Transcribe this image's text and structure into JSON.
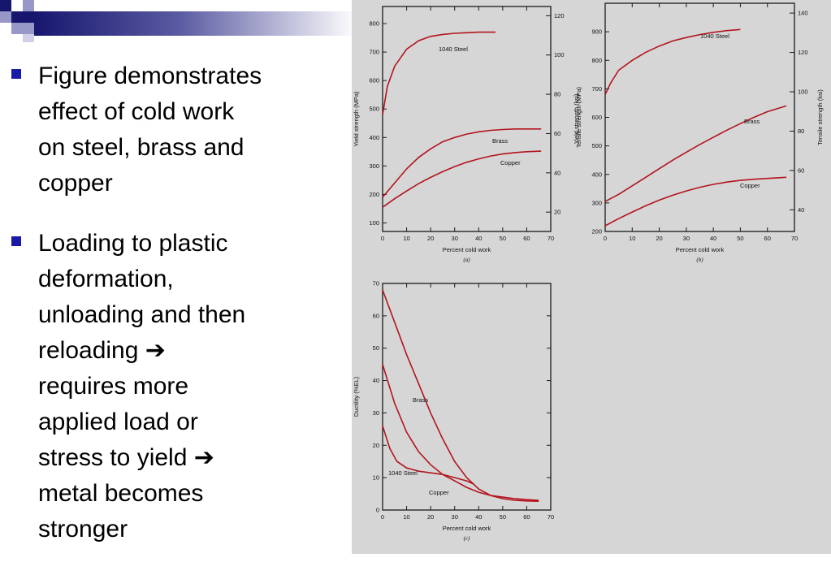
{
  "colors": {
    "bullet": "#1a1aa8",
    "curve": "#b3141e",
    "figure_bg": "#d6d6d6",
    "deco_dark": "#16166e",
    "deco_light": "#9898c8"
  },
  "bullets": [
    {
      "text": "Figure demonstrates\neffect of cold work\non steel, brass and\ncopper"
    },
    {
      "text": "Loading to plastic\ndeformation,\nunloading and then\nreloading ➔\nrequires more\napplied load or\nstress to yield ➔\nmetal becomes\nstronger"
    }
  ],
  "chart_data": [
    {
      "type": "line",
      "sublabel": "(a)",
      "xlabel": "Percent cold work",
      "ylabel": "Yield strength (MPa)",
      "y2label": "Yield strength (ksi)",
      "xlim": [
        0,
        70
      ],
      "ylim": [
        70,
        860
      ],
      "y2lim": [
        10.15,
        124.7
      ],
      "xticks": [
        0,
        10,
        20,
        30,
        40,
        50,
        60,
        70
      ],
      "yticks": [
        100,
        200,
        300,
        400,
        500,
        600,
        700,
        800
      ],
      "y2ticks": [
        20,
        40,
        60,
        80,
        100,
        120
      ],
      "series": [
        {
          "name": "1040 Steel",
          "x": [
            0,
            2,
            5,
            10,
            15,
            20,
            25,
            30,
            35,
            40,
            47
          ],
          "y": [
            480,
            580,
            650,
            710,
            740,
            755,
            762,
            766,
            768,
            770,
            770
          ]
        },
        {
          "name": "Brass",
          "x": [
            0,
            5,
            10,
            15,
            20,
            25,
            30,
            35,
            40,
            45,
            50,
            55,
            60,
            66
          ],
          "y": [
            190,
            240,
            290,
            330,
            360,
            385,
            400,
            412,
            420,
            425,
            428,
            430,
            430,
            430
          ]
        },
        {
          "name": "Copper",
          "x": [
            0,
            5,
            10,
            15,
            20,
            25,
            30,
            35,
            40,
            45,
            50,
            55,
            60,
            66
          ],
          "y": [
            155,
            185,
            212,
            238,
            260,
            280,
            298,
            313,
            325,
            335,
            342,
            347,
            350,
            352
          ]
        }
      ]
    },
    {
      "type": "line",
      "sublabel": "(b)",
      "xlabel": "Percent cold work",
      "ylabel": "Tensile strength (MPa)",
      "y2label": "Tensile strength (ksi)",
      "xlim": [
        0,
        70
      ],
      "ylim": [
        200,
        1000
      ],
      "y2lim": [
        29,
        145
      ],
      "xticks": [
        0,
        10,
        20,
        30,
        40,
        50,
        60,
        70
      ],
      "yticks": [
        200,
        300,
        400,
        500,
        600,
        700,
        800,
        900
      ],
      "y2ticks": [
        40,
        60,
        80,
        100,
        120,
        140
      ],
      "series": [
        {
          "name": "1040 Steel",
          "x": [
            0,
            2,
            5,
            10,
            15,
            20,
            25,
            30,
            35,
            40,
            45,
            50
          ],
          "y": [
            680,
            720,
            765,
            800,
            828,
            850,
            868,
            880,
            890,
            898,
            904,
            908
          ]
        },
        {
          "name": "Brass",
          "x": [
            0,
            5,
            10,
            15,
            20,
            25,
            30,
            35,
            40,
            45,
            50,
            55,
            60,
            67
          ],
          "y": [
            305,
            330,
            360,
            390,
            420,
            450,
            478,
            505,
            530,
            555,
            578,
            600,
            620,
            640
          ]
        },
        {
          "name": "Copper",
          "x": [
            0,
            5,
            10,
            15,
            20,
            25,
            30,
            35,
            40,
            45,
            50,
            55,
            60,
            67
          ],
          "y": [
            220,
            245,
            268,
            290,
            310,
            327,
            342,
            355,
            365,
            373,
            379,
            383,
            386,
            390
          ]
        }
      ]
    },
    {
      "type": "line",
      "sublabel": "(c)",
      "xlabel": "Percent cold work",
      "ylabel": "Ductility (%EL)",
      "xlim": [
        0,
        70
      ],
      "ylim": [
        0,
        70
      ],
      "xticks": [
        0,
        10,
        20,
        30,
        40,
        50,
        60,
        70
      ],
      "yticks": [
        0,
        10,
        20,
        30,
        40,
        50,
        60,
        70
      ],
      "series": [
        {
          "name": "Brass",
          "x": [
            0,
            5,
            10,
            15,
            20,
            25,
            30,
            35,
            40,
            45,
            50,
            55,
            60,
            65
          ],
          "y": [
            68,
            58,
            48,
            39,
            30,
            22,
            15,
            10,
            6.5,
            4.5,
            3.5,
            3,
            2.8,
            2.7
          ]
        },
        {
          "name": "Copper",
          "x": [
            0,
            5,
            10,
            15,
            20,
            25,
            30,
            35,
            40,
            45,
            50,
            55,
            60,
            65
          ],
          "y": [
            45,
            33,
            24,
            18,
            14,
            11,
            9,
            7,
            5.5,
            4.5,
            4,
            3.5,
            3.2,
            3
          ]
        },
        {
          "name": "1040 Steel",
          "x": [
            0,
            3,
            6,
            10,
            15,
            20,
            25,
            30,
            35,
            38
          ],
          "y": [
            26,
            19,
            15,
            13,
            12,
            11.5,
            11,
            10,
            9,
            8
          ]
        }
      ]
    }
  ]
}
